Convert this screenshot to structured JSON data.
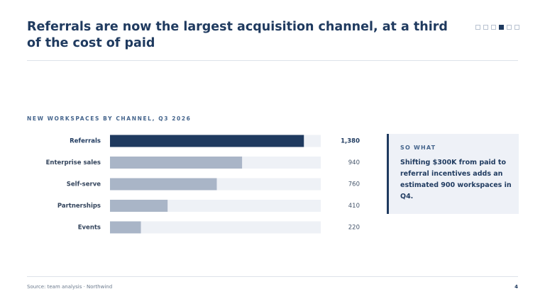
{
  "slide_title": "Referrals are now the largest acquisition channel, at a third of the cost of paid",
  "chart_data": {
    "type": "hbar",
    "title": "NEW WORKSPACES BY CHANNEL, Q3 2026",
    "categories": [
      "Referrals",
      "Enterprise sales",
      "Self-serve",
      "Partnerships",
      "Events"
    ],
    "values": [
      1380,
      940,
      760,
      410,
      220
    ],
    "value_labels": [
      "1,380",
      "940",
      "760",
      "410",
      "220"
    ],
    "colors": [
      "#1f3a5f",
      "#a9b5c7",
      "#a9b5c7",
      "#a9b5c7",
      "#a9b5c7"
    ],
    "track_color": "#eef1f6",
    "xlim": [
      0,
      1500
    ]
  },
  "callout": {
    "heading": "SO WHAT",
    "text": "Shifting $300K from paid to referral incentives adds an estimated 900 workspaces in Q4."
  },
  "footer": {
    "source": "Source: team analysis · Northwind",
    "page": "4"
  }
}
